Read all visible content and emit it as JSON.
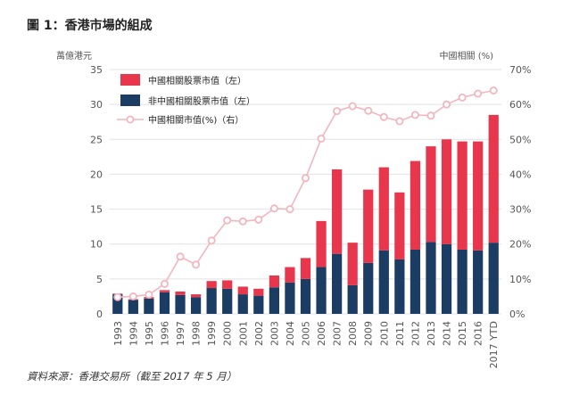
{
  "title": "圖 1：香港市場的組成",
  "source": "資料來源：香港交易所（截至 2017 年 5 月）",
  "colors": {
    "red": "#e8364c",
    "navy": "#1c3d63",
    "pink": "#f2b6c0",
    "grid": "#e2e2e2"
  },
  "chart_data": {
    "type": "bar",
    "stacked": true,
    "categories": [
      "1993",
      "1994",
      "1995",
      "1996",
      "1997",
      "1998",
      "1999",
      "2000",
      "2001",
      "2002",
      "2003",
      "2004",
      "2005",
      "2006",
      "2007",
      "2008",
      "2009",
      "2010",
      "2011",
      "2012",
      "2013",
      "2014",
      "2015",
      "2016",
      "2017 YTD"
    ],
    "series": [
      {
        "name": "非中國相關股票市值（左）",
        "axis": "left",
        "values": [
          2.8,
          2.0,
          2.2,
          3.1,
          2.7,
          2.4,
          3.7,
          3.6,
          2.8,
          2.6,
          3.8,
          4.5,
          5.0,
          6.7,
          8.6,
          4.1,
          7.3,
          9.1,
          7.8,
          9.2,
          10.3,
          10.0,
          9.2,
          9.1,
          10.2
        ]
      },
      {
        "name": "中國相關股票市值（左）",
        "axis": "left",
        "values": [
          0.1,
          0.1,
          0.2,
          0.3,
          0.5,
          0.4,
          1.0,
          1.2,
          1.1,
          1.0,
          1.7,
          2.2,
          3.0,
          6.6,
          12.1,
          6.1,
          10.5,
          11.9,
          9.6,
          12.7,
          13.7,
          15.0,
          15.5,
          15.6,
          18.3
        ]
      },
      {
        "name": "中國相關市值(%)（右）",
        "axis": "right",
        "type": "line",
        "values": [
          4.8,
          5.0,
          5.5,
          8.6,
          16.4,
          14.1,
          21.0,
          26.8,
          26.5,
          27.0,
          30.2,
          30.0,
          38.9,
          50.2,
          58.1,
          59.5,
          58.2,
          56.4,
          55.2,
          57.0,
          56.8,
          60.0,
          62.0,
          63.1,
          64.0
        ]
      }
    ],
    "legend": [
      {
        "label": "中國相關股票市值（左）",
        "kind": "box",
        "color": "#e8364c"
      },
      {
        "label": "非中國相關股票市值（左）",
        "kind": "box",
        "color": "#1c3d63"
      },
      {
        "label": "中國相關市值(%)（右）",
        "kind": "line",
        "color": "#f2b6c0"
      }
    ],
    "y_left": {
      "label": "萬億港元",
      "ticks": [
        "0",
        "5",
        "10",
        "15",
        "20",
        "25",
        "30",
        "35"
      ],
      "min": 0,
      "max": 35
    },
    "y_right": {
      "label": "中國相關 (%)",
      "ticks": [
        "0%",
        "10%",
        "20%",
        "30%",
        "40%",
        "50%",
        "60%",
        "70%"
      ],
      "min": 0,
      "max": 70
    },
    "grid": true
  }
}
